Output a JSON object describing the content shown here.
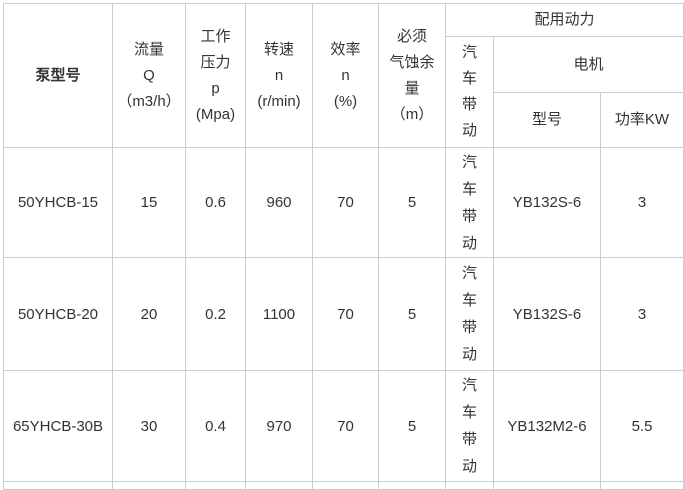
{
  "table": {
    "border_color": "#cccccc",
    "text_color": "#333333",
    "background": "#ffffff",
    "header": {
      "pump_model": "泵型号",
      "flow": "流量\nQ\n（m3/h）",
      "pressure": "工作\n压力\np\n(Mpa)",
      "speed": "转速\nn\n(r/min)",
      "efficiency": "效率\nn\n(%)",
      "npsh": "必须\n气蚀余\n量\n（m）",
      "power_group": "配用动力",
      "vehicle_drive": "汽车带动",
      "motor": "电机",
      "motor_model": "型号",
      "motor_power": "功率KW"
    },
    "rows": [
      {
        "model": "50YHCB-15",
        "flow": "15",
        "pressure": "0.6",
        "speed": "960",
        "efficiency": "70",
        "npsh": "5",
        "drive": "汽车带动",
        "motor_model": "YB132S-6",
        "motor_power": "3"
      },
      {
        "model": "50YHCB-20",
        "flow": "20",
        "pressure": "0.2",
        "speed": "1100",
        "efficiency": "70",
        "npsh": "5",
        "drive": "汽车带动",
        "motor_model": "YB132S-6",
        "motor_power": "3"
      },
      {
        "model": "65YHCB-30B",
        "flow": "30",
        "pressure": "0.4",
        "speed": "970",
        "efficiency": "70",
        "npsh": "5",
        "drive": "汽车带动",
        "motor_model": "YB132M2-6",
        "motor_power": "5.5"
      }
    ]
  },
  "chart_data": {
    "type": "table",
    "title": "",
    "columns": [
      "泵型号",
      "流量 Q（m3/h）",
      "工作压力 p (Mpa)",
      "转速 n (r/min)",
      "效率 n (%)",
      "必须气蚀余量（m）",
      "配用动力-汽车带动",
      "配用动力-电机-型号",
      "配用动力-电机-功率KW"
    ],
    "rows": [
      [
        "50YHCB-15",
        "15",
        "0.6",
        "960",
        "70",
        "5",
        "汽车带动",
        "YB132S-6",
        "3"
      ],
      [
        "50YHCB-20",
        "20",
        "0.2",
        "1100",
        "70",
        "5",
        "汽车带动",
        "YB132S-6",
        "3"
      ],
      [
        "65YHCB-30B",
        "30",
        "0.4",
        "970",
        "70",
        "5",
        "汽车带动",
        "YB132M2-6",
        "5.5"
      ]
    ],
    "layout": {
      "grid": true,
      "header_rows": 3,
      "notes": "配用动力 spans 汽车带动+电机; 电机 spans 型号+功率KW; 汽车带动 cells rendered vertically"
    }
  }
}
